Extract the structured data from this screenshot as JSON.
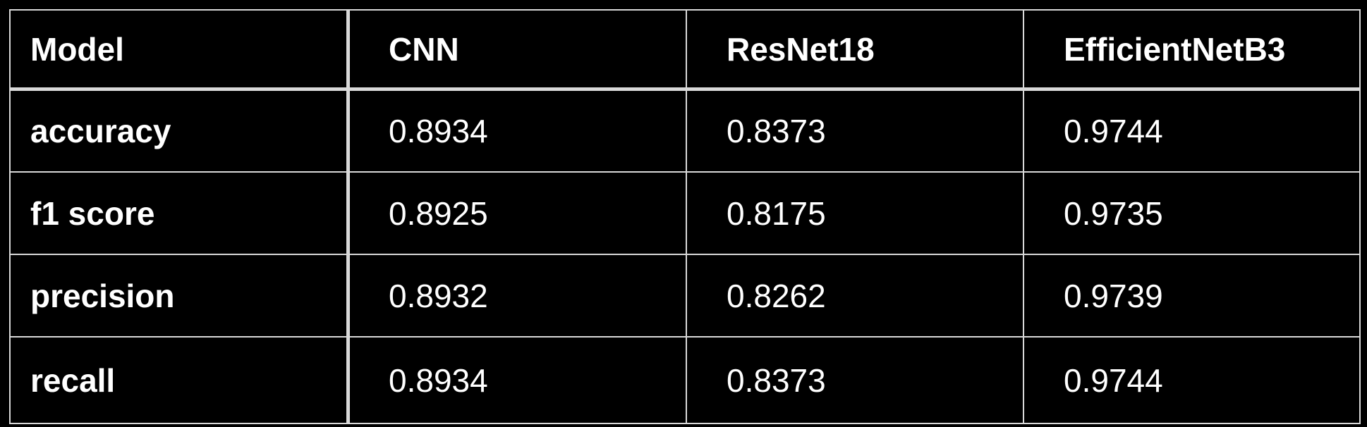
{
  "table": {
    "header": [
      "Model",
      "CNN",
      "ResNet18",
      "EfficientNetB3"
    ],
    "rows": [
      {
        "metric": "accuracy",
        "values": [
          "0.8934",
          "0.8373",
          "0.9744"
        ]
      },
      {
        "metric": "f1 score",
        "values": [
          "0.8925",
          "0.8175",
          "0.9735"
        ]
      },
      {
        "metric": "precision",
        "values": [
          "0.8932",
          "0.8262",
          "0.9739"
        ]
      },
      {
        "metric": "recall",
        "values": [
          "0.8934",
          "0.8373",
          "0.9744"
        ]
      }
    ]
  },
  "colors": {
    "background": "#000000",
    "text": "#ffffff",
    "border": "#d9d9d9"
  }
}
